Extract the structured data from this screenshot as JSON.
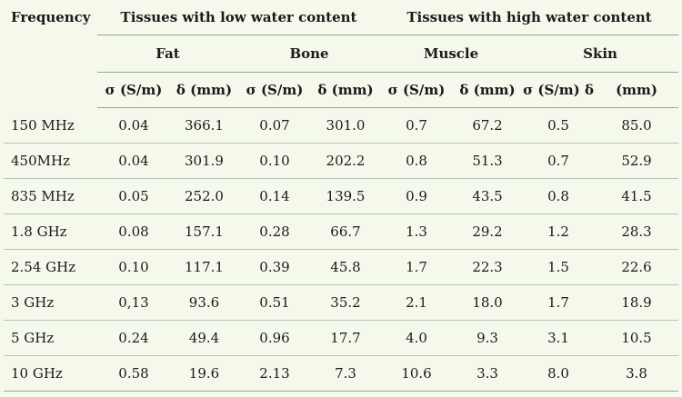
{
  "table": {
    "header": {
      "frequency": "Frequency",
      "group_low": "Tissues with low water content",
      "group_high": "Tissues with high water content",
      "tissues": [
        "Fat",
        "Bone",
        "Muscle",
        "Skin"
      ],
      "units": [
        "σ (S/m)",
        "δ (mm)",
        "σ (S/m)",
        "δ (mm)",
        "σ (S/m)",
        "δ (mm)",
        "σ (S/m) δ",
        "(mm)"
      ]
    },
    "rows": [
      {
        "freq": "150 MHz",
        "values": [
          "0.04",
          "366.1",
          "0.07",
          "301.0",
          "0.7",
          "67.2",
          "0.5",
          "85.0"
        ]
      },
      {
        "freq": "450MHz",
        "values": [
          "0.04",
          "301.9",
          "0.10",
          "202.2",
          "0.8",
          "51.3",
          "0.7",
          "52.9"
        ]
      },
      {
        "freq": "835 MHz",
        "values": [
          "0.05",
          "252.0",
          "0.14",
          "139.5",
          "0.9",
          "43.5",
          "0.8",
          "41.5"
        ]
      },
      {
        "freq": "1.8 GHz",
        "values": [
          "0.08",
          "157.1",
          "0.28",
          "66.7",
          "1.3",
          "29.2",
          "1.2",
          "28.3"
        ]
      },
      {
        "freq": "2.54 GHz",
        "values": [
          "0.10",
          "117.1",
          "0.39",
          "45.8",
          "1.7",
          "22.3",
          "1.5",
          "22.6"
        ]
      },
      {
        "freq": "3 GHz",
        "values": [
          "0,13",
          "93.6",
          "0.51",
          "35.2",
          "2.1",
          "18.0",
          "1.7",
          "18.9"
        ]
      },
      {
        "freq": "5 GHz",
        "values": [
          "0.24",
          "49.4",
          "0.96",
          "17.7",
          "4.0",
          "9.3",
          "3.1",
          "10.5"
        ]
      },
      {
        "freq": "10 GHz",
        "values": [
          "0.58",
          "19.6",
          "2.13",
          "7.3",
          "10.6",
          "3.3",
          "8.0",
          "3.8"
        ]
      }
    ]
  }
}
